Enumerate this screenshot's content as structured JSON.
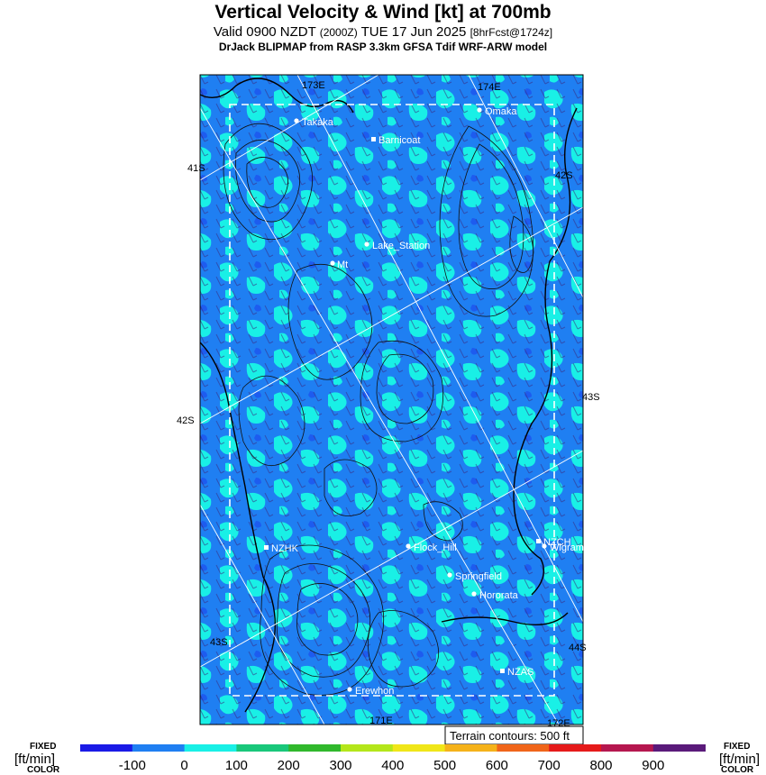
{
  "header": {
    "title": "Vertical Velocity & Wind [kt] at 700mb",
    "valid_prefix": "Valid 0900 NZDT",
    "valid_utc": "(2000Z)",
    "valid_date": "TUE 17 Jun 2025",
    "forecast": "[8hrFcst@1724z]",
    "model": "DrJack BLIPMAP from RASP 3.3km GFSA Tdif WRF-ARW model"
  },
  "map": {
    "grid_labels": [
      {
        "text": "173E",
        "edge": "top-left"
      },
      {
        "text": "174E",
        "edge": "top-right"
      },
      {
        "text": "41S",
        "edge": "left-upper"
      },
      {
        "text": "42S",
        "edge": "right-upper"
      },
      {
        "text": "42S",
        "edge": "left-middle"
      },
      {
        "text": "43S",
        "edge": "right-middle"
      },
      {
        "text": "43S",
        "edge": "left-lower"
      },
      {
        "text": "44S",
        "edge": "right-lower"
      },
      {
        "text": "171E",
        "edge": "bottom-left"
      },
      {
        "text": "172E",
        "edge": "bottom-right"
      }
    ],
    "locations": [
      "Takaka",
      "Omaka",
      "Barnicoat",
      "Lake_Station",
      "Mt",
      "NZHK",
      "Flock_Hill",
      "NZCH",
      "Wigram",
      "Springfield",
      "Hororata",
      "NZAS",
      "Erewhon"
    ],
    "terrain_note": "Terrain contours: 500 ft"
  },
  "colorbar": {
    "fixed": "FIXED",
    "units": "[ft/min]",
    "color_word": "COLOR",
    "ticks": [
      "-100",
      "0",
      "100",
      "200",
      "300",
      "400",
      "500",
      "600",
      "700",
      "800",
      "900"
    ],
    "colors": [
      "#1a1ae6",
      "#1f7ff2",
      "#19f0e6",
      "#19c77a",
      "#30b82c",
      "#b4e61a",
      "#f0e619",
      "#f5b21a",
      "#f0651a",
      "#e51a1a",
      "#b5174f",
      "#5a1a7a"
    ]
  }
}
